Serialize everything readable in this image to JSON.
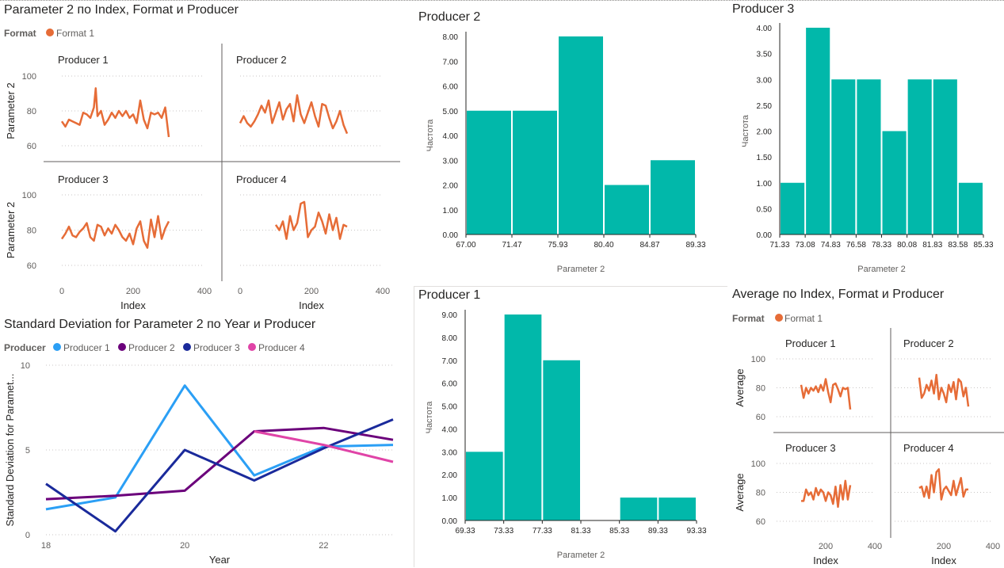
{
  "colors": {
    "orange": "#E66C37",
    "teal": "#01B8AA",
    "producer1": "#2B9FF5",
    "producer2": "#6B007B",
    "producer3": "#1A2A9B",
    "producer4": "#E044A7",
    "text": "#252423",
    "axis": "#605E5C",
    "grid": "#C8C6C4"
  },
  "small_multiples_left": {
    "title": "Parameter 2 по Index, Format и Producer",
    "legend_label": "Format",
    "legend_item": "Format 1",
    "y_label": "Parameter 2",
    "x_label": "Index",
    "x_ticks": [
      "0",
      "200",
      "400"
    ],
    "y_ticks": [
      "60",
      "80",
      "100"
    ],
    "panels": [
      "Producer 1",
      "Producer 2",
      "Producer 3",
      "Producer 4"
    ]
  },
  "small_multiples_right": {
    "title": "Average по Index, Format и Producer",
    "legend_label": "Format",
    "legend_item": "Format 1",
    "y_label": "Average",
    "x_label": "Index",
    "x_ticks": [
      "200",
      "400"
    ],
    "y_ticks": [
      "60",
      "80",
      "100"
    ],
    "panels": [
      "Producer 1",
      "Producer 2",
      "Producer 3",
      "Producer 4"
    ]
  },
  "std_chart": {
    "title": "Standard Deviation for Parameter 2 по Year и Producer",
    "legend_label": "Producer",
    "legend_items": [
      "Producer 1",
      "Producer 2",
      "Producer 3",
      "Producer 4"
    ],
    "y_label": "Standard Deviation for Paramet...",
    "x_label": "Year",
    "x_ticks": [
      "18",
      "20",
      "22"
    ],
    "y_ticks": [
      "0",
      "5",
      "10"
    ]
  },
  "hist_labels": {
    "producer2_title": "Producer 2",
    "producer3_title": "Producer 3",
    "producer1_title": "Producer 1",
    "y_label": "Частота",
    "x_label": "Parameter 2"
  },
  "chart_data": [
    {
      "type": "line",
      "title": "Parameter 2 по Index, Format и Producer",
      "xlabel": "Index",
      "ylabel": "Parameter 2",
      "xlim": [
        0,
        400
      ],
      "ylim": [
        60,
        100
      ],
      "legend": "Format 1",
      "facets": [
        {
          "name": "Producer 1",
          "x": [
            0,
            10,
            20,
            30,
            40,
            50,
            60,
            70,
            80,
            90,
            95,
            100,
            110,
            120,
            130,
            140,
            150,
            160,
            170,
            180,
            190,
            200,
            210,
            220,
            230,
            240,
            250,
            260,
            270,
            280,
            290,
            300
          ],
          "y": [
            74,
            71,
            75,
            74,
            73,
            72,
            79,
            78,
            76,
            82,
            93,
            77,
            80,
            72,
            75,
            79,
            76,
            80,
            77,
            80,
            76,
            78,
            73,
            86,
            75,
            70,
            79,
            78,
            79,
            76,
            82,
            65
          ]
        },
        {
          "name": "Producer 2",
          "x": [
            0,
            10,
            20,
            30,
            40,
            50,
            60,
            70,
            80,
            90,
            100,
            110,
            120,
            130,
            140,
            150,
            160,
            170,
            180,
            190,
            200,
            210,
            220,
            230,
            240,
            250,
            260,
            270,
            280,
            290,
            300
          ],
          "y": [
            73,
            77,
            73,
            71,
            74,
            78,
            83,
            79,
            86,
            73,
            79,
            85,
            75,
            81,
            84,
            74,
            89,
            78,
            73,
            79,
            85,
            77,
            71,
            84,
            83,
            76,
            70,
            74,
            80,
            72,
            67
          ]
        },
        {
          "name": "Producer 3",
          "x": [
            0,
            10,
            20,
            30,
            40,
            50,
            60,
            70,
            80,
            90,
            100,
            110,
            120,
            130,
            140,
            150,
            160,
            170,
            180,
            190,
            200,
            210,
            220,
            230,
            240,
            250,
            260,
            270,
            280,
            290,
            300
          ],
          "y": [
            75,
            78,
            82,
            77,
            76,
            79,
            81,
            84,
            76,
            74,
            83,
            82,
            77,
            81,
            78,
            83,
            80,
            76,
            74,
            78,
            72,
            81,
            85,
            74,
            70,
            86,
            76,
            88,
            75,
            81,
            85
          ]
        },
        {
          "name": "Producer 4",
          "x": [
            100,
            110,
            120,
            130,
            140,
            150,
            160,
            170,
            180,
            190,
            200,
            210,
            220,
            230,
            240,
            250,
            260,
            270,
            280,
            290,
            300
          ],
          "y": [
            83,
            80,
            85,
            75,
            88,
            80,
            84,
            95,
            96,
            76,
            80,
            82,
            90,
            85,
            78,
            89,
            80,
            87,
            75,
            83,
            82
          ]
        }
      ]
    },
    {
      "type": "bar",
      "title": "Producer 2",
      "xlabel": "Parameter 2",
      "ylabel": "Частота",
      "bin_edges": [
        67.0,
        71.47,
        75.93,
        80.4,
        84.87,
        89.33
      ],
      "values": [
        5,
        5,
        8,
        2,
        3
      ],
      "y_ticks": [
        "0.00",
        "1.00",
        "2.00",
        "3.00",
        "4.00",
        "5.00",
        "6.00",
        "7.00",
        "8.00"
      ],
      "ylim": [
        0,
        8
      ]
    },
    {
      "type": "bar",
      "title": "Producer 3",
      "xlabel": "Parameter 2",
      "ylabel": "Частота",
      "bin_edges": [
        71.33,
        73.08,
        74.83,
        76.58,
        78.33,
        80.08,
        81.83,
        83.58,
        85.33
      ],
      "values": [
        1,
        4,
        3,
        3,
        2,
        3,
        3,
        1
      ],
      "y_ticks": [
        "0.00",
        "0.50",
        "1.00",
        "1.50",
        "2.00",
        "2.50",
        "3.00",
        "3.50",
        "4.00"
      ],
      "ylim": [
        0,
        4
      ]
    },
    {
      "type": "bar",
      "title": "Producer 1",
      "xlabel": "Parameter 2",
      "ylabel": "Частота",
      "bin_edges": [
        69.33,
        73.33,
        77.33,
        81.33,
        85.33,
        89.33,
        93.33
      ],
      "values": [
        3,
        9,
        7,
        0,
        1,
        1
      ],
      "y_ticks": [
        "0.00",
        "1.00",
        "2.00",
        "3.00",
        "4.00",
        "5.00",
        "6.00",
        "7.00",
        "8.00",
        "9.00"
      ],
      "ylim": [
        0,
        9
      ]
    },
    {
      "type": "line",
      "title": "Standard Deviation for Parameter 2 по Year и Producer",
      "xlabel": "Year",
      "ylabel": "Standard Deviation for Paramet...",
      "xlim": [
        18,
        23
      ],
      "ylim": [
        0,
        10
      ],
      "series": [
        {
          "name": "Producer 1",
          "x": [
            18,
            19,
            20,
            21,
            22,
            23
          ],
          "y": [
            1.5,
            2.2,
            8.8,
            3.5,
            5.2,
            5.3
          ]
        },
        {
          "name": "Producer 2",
          "x": [
            18,
            19,
            20,
            21,
            22,
            23
          ],
          "y": [
            2.1,
            2.3,
            2.6,
            6.1,
            6.3,
            5.6
          ]
        },
        {
          "name": "Producer 3",
          "x": [
            18,
            19,
            20,
            21,
            22,
            23
          ],
          "y": [
            3.0,
            0.2,
            5.0,
            3.2,
            5.1,
            6.8
          ]
        },
        {
          "name": "Producer 4",
          "x": [
            21,
            22,
            23
          ],
          "y": [
            6.1,
            5.3,
            4.3
          ]
        }
      ]
    },
    {
      "type": "line",
      "title": "Average по Index, Format и Producer",
      "xlabel": "Index",
      "ylabel": "Average",
      "xlim": [
        0,
        400
      ],
      "ylim": [
        60,
        100
      ],
      "legend": "Format 1",
      "facets": [
        {
          "name": "Producer 1",
          "x": [
            100,
            110,
            120,
            130,
            140,
            150,
            160,
            170,
            180,
            190,
            200,
            210,
            220,
            230,
            240,
            250,
            260,
            270,
            280,
            290,
            300
          ],
          "y": [
            82,
            73,
            80,
            76,
            80,
            78,
            81,
            77,
            82,
            78,
            86,
            77,
            70,
            82,
            83,
            79,
            74,
            80,
            79,
            80,
            65
          ]
        },
        {
          "name": "Producer 2",
          "x": [
            100,
            110,
            120,
            130,
            140,
            150,
            160,
            170,
            180,
            190,
            200,
            210,
            220,
            230,
            240,
            250,
            260,
            270,
            280,
            290,
            300
          ],
          "y": [
            87,
            73,
            76,
            82,
            78,
            85,
            76,
            89,
            72,
            80,
            76,
            70,
            82,
            77,
            84,
            72,
            86,
            84,
            74,
            80,
            67
          ]
        },
        {
          "name": "Producer 3",
          "x": [
            100,
            110,
            120,
            130,
            140,
            150,
            160,
            170,
            180,
            190,
            200,
            210,
            220,
            230,
            240,
            250,
            260,
            270,
            280,
            290,
            300
          ],
          "y": [
            74,
            74,
            82,
            78,
            80,
            75,
            83,
            78,
            82,
            80,
            74,
            80,
            78,
            72,
            84,
            70,
            85,
            75,
            88,
            75,
            85
          ]
        },
        {
          "name": "Producer 4",
          "x": [
            100,
            110,
            120,
            130,
            140,
            150,
            160,
            170,
            180,
            190,
            200,
            210,
            220,
            230,
            240,
            250,
            260,
            270,
            280,
            290,
            300
          ],
          "y": [
            83,
            84,
            77,
            84,
            76,
            92,
            80,
            94,
            96,
            75,
            82,
            84,
            81,
            78,
            88,
            78,
            84,
            90,
            77,
            82,
            82
          ]
        }
      ]
    }
  ]
}
